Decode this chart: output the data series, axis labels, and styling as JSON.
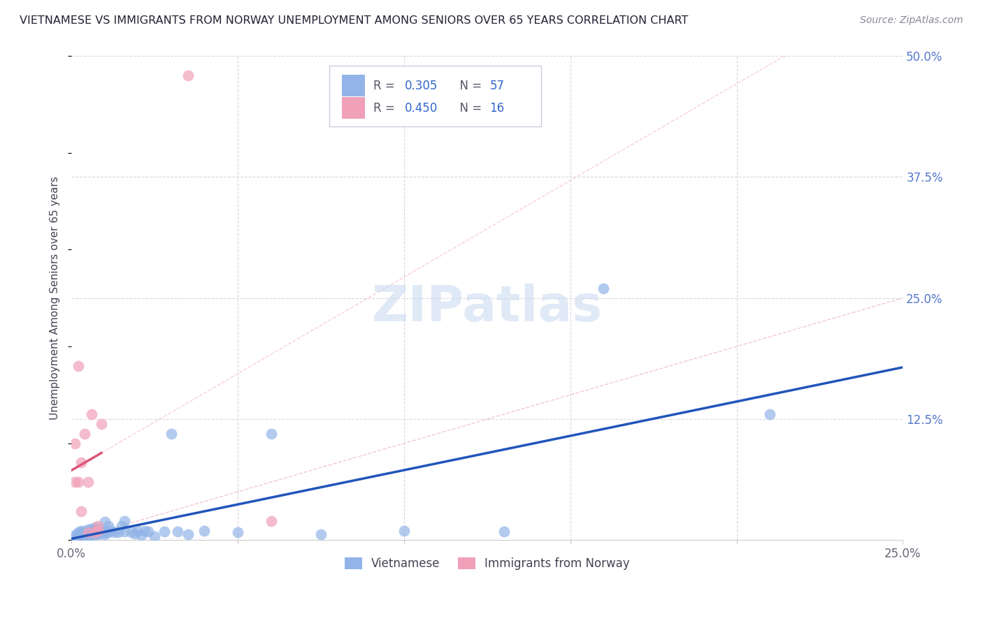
{
  "title": "VIETNAMESE VS IMMIGRANTS FROM NORWAY UNEMPLOYMENT AMONG SENIORS OVER 65 YEARS CORRELATION CHART",
  "source": "Source: ZipAtlas.com",
  "ylabel": "Unemployment Among Seniors over 65 years",
  "xlim": [
    0,
    0.25
  ],
  "ylim": [
    0,
    0.5
  ],
  "blue_color": "#92b4e8",
  "pink_color": "#f0a0b8",
  "blue_line_color": "#2255bb",
  "pink_line_color": "#dd5577",
  "diag_color": "#e8b8c8",
  "background_color": "#ffffff",
  "grid_color": "#d8d8e0",
  "watermark": "ZIPatlas",
  "viet_x": [
    0.001,
    0.001,
    0.002,
    0.002,
    0.002,
    0.003,
    0.003,
    0.003,
    0.003,
    0.004,
    0.004,
    0.004,
    0.005,
    0.005,
    0.005,
    0.005,
    0.006,
    0.006,
    0.006,
    0.007,
    0.007,
    0.007,
    0.008,
    0.008,
    0.008,
    0.009,
    0.009,
    0.01,
    0.01,
    0.01,
    0.011,
    0.011,
    0.012,
    0.013,
    0.014,
    0.015,
    0.016,
    0.016,
    0.018,
    0.019,
    0.02,
    0.021,
    0.022,
    0.023,
    0.025,
    0.028,
    0.03,
    0.032,
    0.035,
    0.04,
    0.05,
    0.06,
    0.075,
    0.1,
    0.13,
    0.16,
    0.21
  ],
  "viet_y": [
    0.003,
    0.005,
    0.003,
    0.005,
    0.008,
    0.004,
    0.006,
    0.008,
    0.01,
    0.004,
    0.007,
    0.009,
    0.004,
    0.006,
    0.009,
    0.011,
    0.005,
    0.008,
    0.012,
    0.006,
    0.009,
    0.013,
    0.006,
    0.009,
    0.012,
    0.007,
    0.01,
    0.006,
    0.009,
    0.019,
    0.008,
    0.015,
    0.01,
    0.008,
    0.008,
    0.015,
    0.02,
    0.009,
    0.008,
    0.007,
    0.01,
    0.005,
    0.01,
    0.009,
    0.004,
    0.009,
    0.11,
    0.009,
    0.006,
    0.01,
    0.008,
    0.11,
    0.006,
    0.01,
    0.009,
    0.26,
    0.13
  ],
  "norw_x": [
    0.001,
    0.001,
    0.002,
    0.002,
    0.003,
    0.003,
    0.004,
    0.005,
    0.005,
    0.006,
    0.007,
    0.008,
    0.008,
    0.009,
    0.035,
    0.06
  ],
  "norw_y": [
    0.06,
    0.1,
    0.06,
    0.18,
    0.03,
    0.08,
    0.11,
    0.008,
    0.06,
    0.13,
    0.008,
    0.01,
    0.015,
    0.12,
    0.48,
    0.02
  ],
  "blue_trend": [
    0.0,
    0.25,
    0.008,
    0.13
  ],
  "pink_trend": [
    0.0,
    0.009,
    0.005,
    0.3
  ]
}
